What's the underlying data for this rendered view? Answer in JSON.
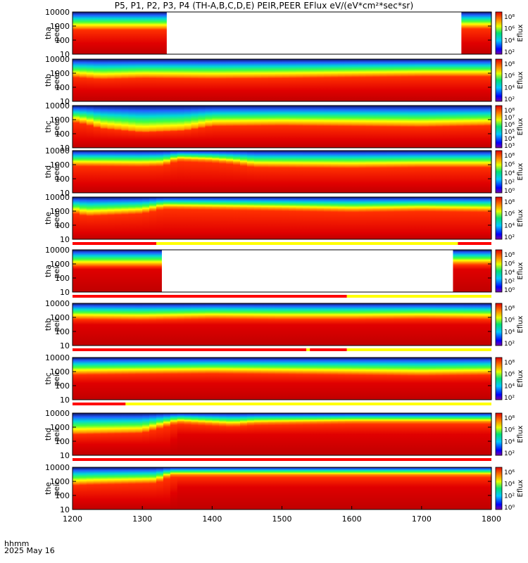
{
  "title": "P5, P1, P2, P3, P4 (TH-A,B,C,D,E) PEIR,PEER EFlux eV/(eV*cm²*sec*sr)",
  "footer": {
    "line1": "hhmm",
    "line2": "2025 May 16"
  },
  "colors": {
    "bar_red": "#ff0000",
    "bar_yellow": "#ffff00"
  },
  "chart_data": {
    "type": "heatmap",
    "x_axis": {
      "label": "hhmm",
      "range": [
        1200,
        1800
      ],
      "ticks": [
        "1200",
        "1300",
        "1400",
        "1500",
        "1600",
        "1700",
        "1800"
      ]
    },
    "y_axis": {
      "scale": "log",
      "range": [
        10,
        10000
      ],
      "ticks": [
        "10",
        "100",
        "1000",
        "10000"
      ]
    },
    "colorbar": {
      "label": "Eflux",
      "scale": "log",
      "colormap": "rainbow (blue-green-yellow-red)"
    },
    "panels": [
      {
        "probe": "tha",
        "species": "peer",
        "ylabel": [
          "tha",
          "peer"
        ],
        "cbar_ticks": [
          "10²",
          "10⁴",
          "10⁶",
          "10⁸"
        ],
        "data_gaps": [
          [
            1335,
            1757
          ]
        ],
        "profile": [
          [
            1200,
            750
          ],
          [
            1300,
            750
          ],
          [
            1335,
            750
          ],
          [
            1757,
            900
          ],
          [
            1800,
            900
          ]
        ],
        "profile_low": [
          [
            1200,
            60
          ],
          [
            1800,
            60
          ]
        ]
      },
      {
        "probe": "thb",
        "species": "peer",
        "ylabel": [
          "thb",
          "peer"
        ],
        "cbar_ticks": [
          "10²",
          "10⁴",
          "10⁶",
          "10⁸"
        ],
        "profile": [
          [
            1200,
            700
          ],
          [
            1240,
            500
          ],
          [
            1300,
            600
          ],
          [
            1400,
            550
          ],
          [
            1500,
            600
          ],
          [
            1600,
            700
          ],
          [
            1700,
            800
          ],
          [
            1800,
            800
          ]
        ],
        "profile_low": [
          [
            1200,
            60
          ],
          [
            1800,
            60
          ]
        ]
      },
      {
        "probe": "thc",
        "species": "peer",
        "ylabel": [
          "thc",
          "peer"
        ],
        "cbar_ticks": [
          "10³",
          "10⁴",
          "10⁵",
          "10⁶",
          "10⁷",
          "10⁸"
        ],
        "profile": [
          [
            1200,
            900
          ],
          [
            1220,
            600
          ],
          [
            1240,
            300
          ],
          [
            1300,
            150
          ],
          [
            1360,
            200
          ],
          [
            1400,
            450
          ],
          [
            1500,
            500
          ],
          [
            1600,
            450
          ],
          [
            1700,
            400
          ],
          [
            1800,
            500
          ]
        ],
        "profile_low": [
          [
            1200,
            35
          ],
          [
            1800,
            35
          ]
        ]
      },
      {
        "probe": "thd",
        "species": "peer",
        "ylabel": [
          "thd",
          "peer"
        ],
        "cbar_ticks": [
          "10⁰",
          "10²",
          "10⁴",
          "10⁶",
          "10⁸"
        ],
        "profile": [
          [
            1200,
            1100
          ],
          [
            1300,
            1000
          ],
          [
            1330,
            1100
          ],
          [
            1350,
            2500
          ],
          [
            1400,
            2000
          ],
          [
            1430,
            1500
          ],
          [
            1460,
            900
          ],
          [
            1600,
            800
          ],
          [
            1700,
            900
          ],
          [
            1800,
            900
          ]
        ],
        "profile_low": [
          [
            1200,
            45
          ],
          [
            1800,
            45
          ]
        ]
      },
      {
        "probe": "the",
        "species": "peer",
        "ylabel": [
          "the",
          "peer"
        ],
        "cbar_ticks": [
          "10²",
          "10⁴",
          "10⁶",
          "10⁸"
        ],
        "profile": [
          [
            1200,
            1000
          ],
          [
            1220,
            600
          ],
          [
            1300,
            900
          ],
          [
            1330,
            2000
          ],
          [
            1400,
            1800
          ],
          [
            1500,
            1500
          ],
          [
            1600,
            1200
          ],
          [
            1700,
            1400
          ],
          [
            1800,
            1200
          ]
        ],
        "profile_low": [
          [
            1200,
            30
          ],
          [
            1800,
            30
          ]
        ]
      },
      {
        "probe": "tha",
        "species": "peir",
        "ylabel": [
          "tha",
          "peir"
        ],
        "cbar_ticks": [
          "10⁰",
          "10²",
          "10⁴",
          "10⁶",
          "10⁸"
        ],
        "data_gaps": [
          [
            1328,
            1745
          ]
        ],
        "profile": [
          [
            1200,
            900
          ],
          [
            1328,
            900
          ],
          [
            1745,
            1200
          ],
          [
            1800,
            1200
          ]
        ],
        "profile_low": [
          [
            1200,
            400
          ],
          [
            1800,
            400
          ]
        ]
      },
      {
        "probe": "thb",
        "species": "peir",
        "ylabel": [
          "thb",
          "peir"
        ],
        "cbar_ticks": [
          "10²",
          "10⁴",
          "10⁶",
          "10⁸"
        ],
        "profile": [
          [
            1200,
            1000
          ],
          [
            1300,
            900
          ],
          [
            1400,
            1100
          ],
          [
            1500,
            1000
          ],
          [
            1600,
            1000
          ],
          [
            1700,
            1100
          ],
          [
            1800,
            1000
          ]
        ],
        "profile_low": [
          [
            1200,
            300
          ],
          [
            1800,
            300
          ]
        ]
      },
      {
        "probe": "thc",
        "species": "peir",
        "ylabel": [
          "thc",
          "peir"
        ],
        "cbar_ticks": [
          "10²",
          "10⁴",
          "10⁶",
          "10⁸"
        ],
        "profile": [
          [
            1200,
            800
          ],
          [
            1300,
            900
          ],
          [
            1400,
            1000
          ],
          [
            1500,
            900
          ],
          [
            1600,
            800
          ],
          [
            1700,
            700
          ],
          [
            1800,
            800
          ]
        ],
        "profile_low": [
          [
            1200,
            150
          ],
          [
            1800,
            150
          ]
        ]
      },
      {
        "probe": "thd",
        "species": "peir",
        "ylabel": [
          "thd",
          "peir"
        ],
        "cbar_ticks": [
          "10²",
          "10⁴",
          "10⁶",
          "10⁸"
        ],
        "profile": [
          [
            1200,
            400
          ],
          [
            1300,
            500
          ],
          [
            1350,
            2500
          ],
          [
            1430,
            1500
          ],
          [
            1460,
            2000
          ],
          [
            1600,
            2500
          ],
          [
            1800,
            2500
          ]
        ],
        "profile_low": [
          [
            1200,
            60
          ],
          [
            1340,
            60
          ],
          [
            1350,
            300
          ],
          [
            1800,
            300
          ]
        ]
      },
      {
        "probe": "the",
        "species": "peir",
        "ylabel": [
          "the",
          "peir"
        ],
        "cbar_ticks": [
          "10⁰",
          "10²",
          "10⁴",
          "10⁶"
        ],
        "profile": [
          [
            1200,
            700
          ],
          [
            1230,
            800
          ],
          [
            1320,
            1000
          ],
          [
            1340,
            3000
          ],
          [
            1500,
            3000
          ],
          [
            1600,
            3000
          ],
          [
            1800,
            3000
          ]
        ],
        "profile_low": [
          [
            1200,
            50
          ],
          [
            1340,
            50
          ],
          [
            1350,
            400
          ],
          [
            1800,
            400
          ]
        ]
      }
    ],
    "mode_bars": [
      {
        "after_panel": 5,
        "segments": [
          {
            "from": 1200,
            "to": 1320,
            "color": "red"
          },
          {
            "from": 1320,
            "to": 1752,
            "color": "yellow"
          },
          {
            "from": 1752,
            "to": 1800,
            "color": "red"
          }
        ]
      },
      {
        "after_panel": 6,
        "segments": [
          {
            "from": 1200,
            "to": 1593,
            "color": "red"
          },
          {
            "from": 1593,
            "to": 1800,
            "color": "yellow"
          }
        ]
      },
      {
        "after_panel": 7,
        "segments": [
          {
            "from": 1200,
            "to": 1535,
            "color": "red"
          },
          {
            "from": 1535,
            "to": 1540,
            "color": "yellow"
          },
          {
            "from": 1540,
            "to": 1593,
            "color": "red"
          },
          {
            "from": 1593,
            "to": 1800,
            "color": "yellow"
          }
        ]
      },
      {
        "after_panel": 8,
        "segments": [
          {
            "from": 1200,
            "to": 1276,
            "color": "red"
          },
          {
            "from": 1276,
            "to": 1800,
            "color": "yellow"
          }
        ]
      },
      {
        "after_panel": 9,
        "segments": [
          {
            "from": 1200,
            "to": 1800,
            "color": "red"
          }
        ]
      }
    ]
  }
}
